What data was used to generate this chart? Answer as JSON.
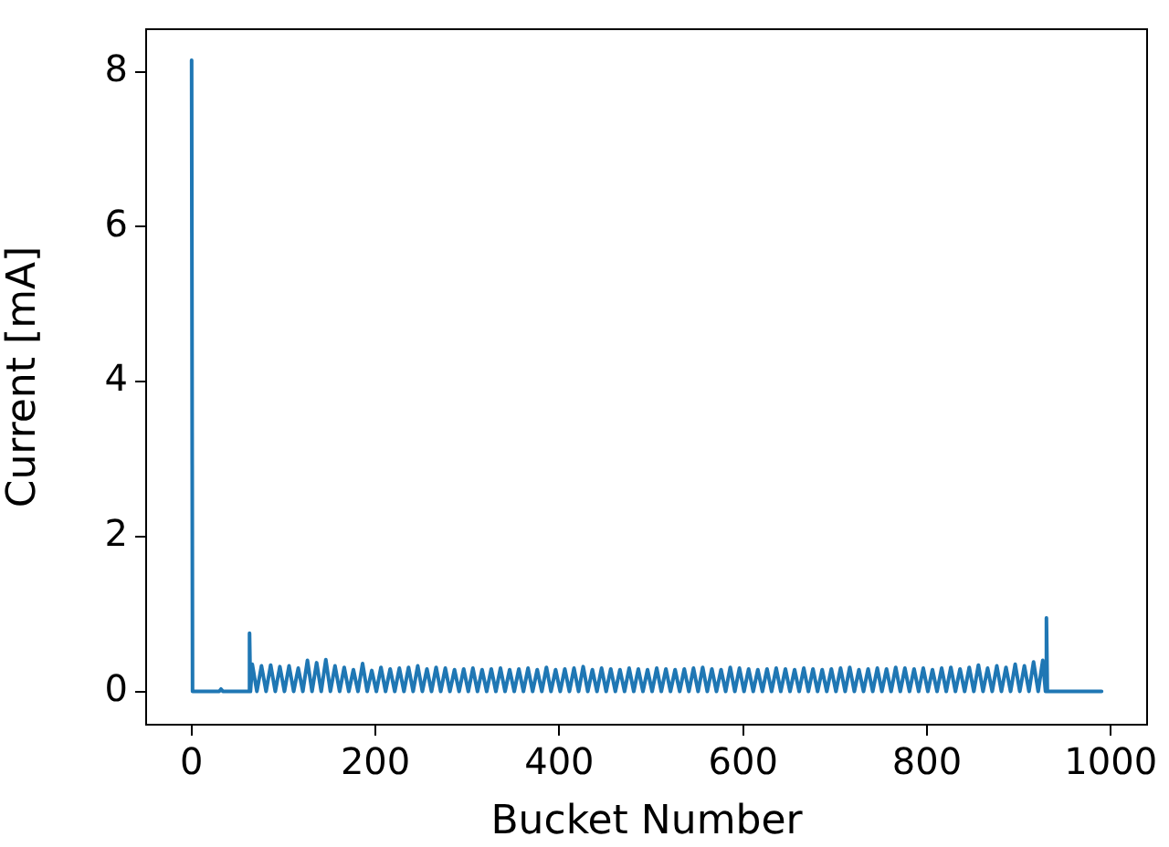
{
  "chart_data": {
    "type": "line",
    "xlabel": "Bucket Number",
    "ylabel": "Current [mA]",
    "color": "#1f77b4",
    "grid": false,
    "legend": false,
    "marker": "none",
    "line_style": "solid",
    "xlim": [
      -49.5,
      1039.5
    ],
    "xticks": [
      0,
      200,
      400,
      600,
      800,
      1000
    ],
    "ylim": [
      -0.43,
      8.55
    ],
    "yticks": [
      0,
      2,
      4,
      6,
      8
    ],
    "x": [
      0,
      1,
      30,
      32,
      34,
      62,
      63,
      64,
      66,
      71,
      76,
      81,
      86,
      91,
      96,
      101,
      106,
      111,
      116,
      121,
      126,
      131,
      136,
      141,
      146,
      151,
      156,
      161,
      166,
      171,
      176,
      181,
      186,
      191,
      196,
      201,
      206,
      211,
      216,
      221,
      226,
      231,
      236,
      241,
      246,
      251,
      256,
      261,
      266,
      271,
      276,
      281,
      286,
      291,
      296,
      301,
      306,
      311,
      316,
      321,
      326,
      331,
      336,
      341,
      346,
      351,
      356,
      361,
      366,
      371,
      376,
      381,
      386,
      391,
      396,
      401,
      406,
      411,
      416,
      421,
      426,
      431,
      436,
      441,
      446,
      451,
      456,
      461,
      466,
      471,
      476,
      481,
      486,
      491,
      496,
      501,
      506,
      511,
      516,
      521,
      526,
      531,
      536,
      541,
      546,
      551,
      556,
      561,
      566,
      571,
      576,
      581,
      586,
      591,
      596,
      601,
      606,
      611,
      616,
      621,
      626,
      631,
      636,
      641,
      646,
      651,
      656,
      661,
      666,
      671,
      676,
      681,
      686,
      691,
      696,
      701,
      706,
      711,
      716,
      721,
      726,
      731,
      736,
      741,
      746,
      751,
      756,
      761,
      766,
      771,
      776,
      781,
      786,
      791,
      796,
      801,
      806,
      811,
      816,
      821,
      826,
      831,
      836,
      841,
      846,
      851,
      856,
      861,
      866,
      871,
      876,
      881,
      886,
      891,
      896,
      901,
      906,
      911,
      916,
      921,
      926,
      929,
      930,
      931,
      990
    ],
    "values": [
      8.15,
      0,
      0,
      0.03,
      0,
      0,
      0.75,
      0,
      0.35,
      0,
      0.33,
      0,
      0.34,
      0,
      0.32,
      0,
      0.33,
      0,
      0.3,
      0,
      0.4,
      0,
      0.37,
      0,
      0.41,
      0,
      0.33,
      0,
      0.31,
      0,
      0.28,
      0,
      0.36,
      0,
      0.27,
      0,
      0.31,
      0,
      0.29,
      0,
      0.3,
      0,
      0.31,
      0,
      0.33,
      0,
      0.29,
      0,
      0.31,
      0,
      0.3,
      0,
      0.28,
      0,
      0.29,
      0,
      0.3,
      0,
      0.28,
      0,
      0.29,
      0,
      0.3,
      0,
      0.28,
      0,
      0.29,
      0,
      0.3,
      0,
      0.28,
      0,
      0.31,
      0,
      0.28,
      0,
      0.29,
      0,
      0.3,
      0,
      0.32,
      0,
      0.28,
      0,
      0.3,
      0,
      0.29,
      0,
      0.28,
      0,
      0.3,
      0,
      0.29,
      0,
      0.28,
      0,
      0.3,
      0,
      0.29,
      0,
      0.28,
      0,
      0.29,
      0,
      0.3,
      0,
      0.31,
      0,
      0.29,
      0,
      0.28,
      0,
      0.31,
      0,
      0.3,
      0,
      0.29,
      0,
      0.28,
      0,
      0.29,
      0,
      0.3,
      0,
      0.29,
      0,
      0.28,
      0,
      0.3,
      0,
      0.29,
      0,
      0.28,
      0,
      0.29,
      0,
      0.3,
      0,
      0.31,
      0,
      0.28,
      0,
      0.29,
      0,
      0.3,
      0,
      0.29,
      0,
      0.31,
      0,
      0.3,
      0,
      0.29,
      0,
      0.3,
      0,
      0.28,
      0,
      0.3,
      0,
      0.31,
      0,
      0.29,
      0,
      0.31,
      0,
      0.34,
      0,
      0.3,
      0,
      0.33,
      0,
      0.31,
      0,
      0.35,
      0,
      0.33,
      0,
      0.38,
      0,
      0.4,
      0,
      0.95,
      0,
      0
    ]
  }
}
